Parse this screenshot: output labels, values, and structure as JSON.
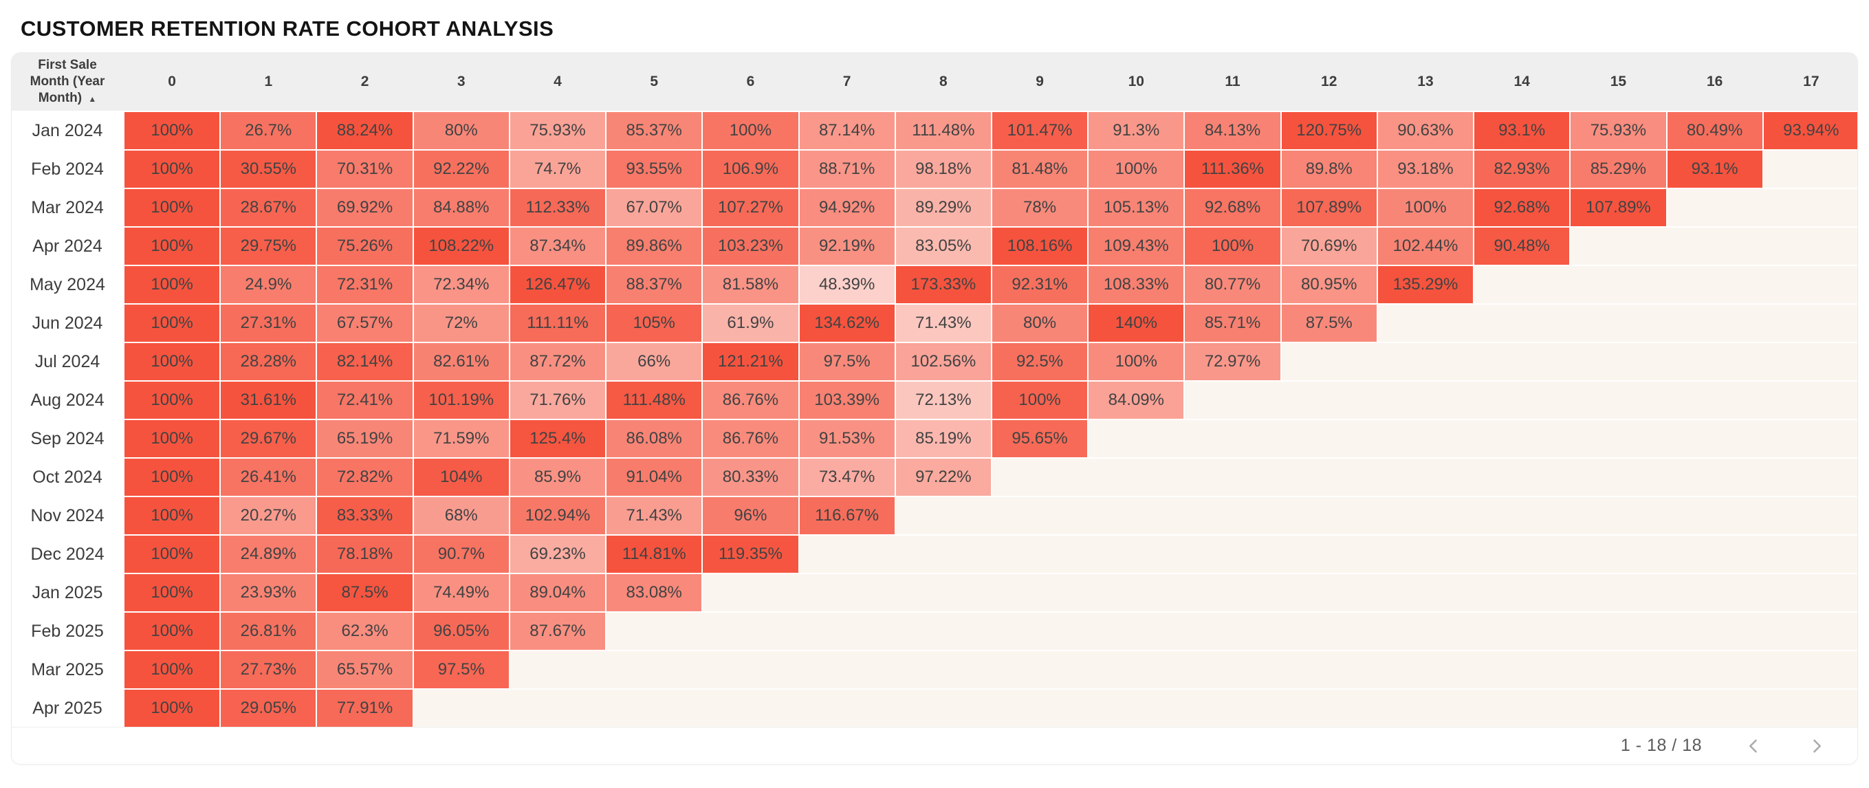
{
  "title": "CUSTOMER RETENTION RATE COHORT ANALYSIS",
  "chart_data": {
    "type": "heatmap",
    "row_header_label": "First Sale Month (Year Month)",
    "sort_indicator": "▲",
    "value_suffix": "%",
    "columns": [
      "0",
      "1",
      "2",
      "3",
      "4",
      "5",
      "6",
      "7",
      "8",
      "9",
      "10",
      "11",
      "12",
      "13",
      "14",
      "15",
      "16",
      "17"
    ],
    "rows": [
      {
        "label": "Jan 2024",
        "values": [
          100,
          26.7,
          88.24,
          80,
          75.93,
          85.37,
          100,
          87.14,
          111.48,
          101.47,
          91.3,
          84.13,
          120.75,
          90.63,
          93.1,
          75.93,
          80.49,
          93.94
        ]
      },
      {
        "label": "Feb 2024",
        "values": [
          100,
          30.55,
          70.31,
          92.22,
          74.7,
          93.55,
          106.9,
          88.71,
          98.18,
          81.48,
          100,
          111.36,
          89.8,
          93.18,
          82.93,
          85.29,
          93.1
        ]
      },
      {
        "label": "Mar 2024",
        "values": [
          100,
          28.67,
          69.92,
          84.88,
          112.33,
          67.07,
          107.27,
          94.92,
          89.29,
          78,
          105.13,
          92.68,
          107.89,
          100,
          92.68,
          107.89
        ]
      },
      {
        "label": "Apr 2024",
        "values": [
          100,
          29.75,
          75.26,
          108.22,
          87.34,
          89.86,
          103.23,
          92.19,
          83.05,
          108.16,
          109.43,
          100,
          70.69,
          102.44,
          90.48
        ]
      },
      {
        "label": "May 2024",
        "values": [
          100,
          24.9,
          72.31,
          72.34,
          126.47,
          88.37,
          81.58,
          48.39,
          173.33,
          92.31,
          108.33,
          80.77,
          80.95,
          135.29
        ]
      },
      {
        "label": "Jun 2024",
        "values": [
          100,
          27.31,
          67.57,
          72,
          111.11,
          105,
          61.9,
          134.62,
          71.43,
          80,
          140,
          85.71,
          87.5
        ]
      },
      {
        "label": "Jul 2024",
        "values": [
          100,
          28.28,
          82.14,
          82.61,
          87.72,
          66,
          121.21,
          97.5,
          102.56,
          92.5,
          100,
          72.97
        ]
      },
      {
        "label": "Aug 2024",
        "values": [
          100,
          31.61,
          72.41,
          101.19,
          71.76,
          111.48,
          86.76,
          103.39,
          72.13,
          100,
          84.09
        ]
      },
      {
        "label": "Sep 2024",
        "values": [
          100,
          29.67,
          65.19,
          71.59,
          125.4,
          86.08,
          86.76,
          91.53,
          85.19,
          95.65
        ]
      },
      {
        "label": "Oct 2024",
        "values": [
          100,
          26.41,
          72.82,
          104,
          85.9,
          91.04,
          80.33,
          73.47,
          97.22
        ]
      },
      {
        "label": "Nov 2024",
        "values": [
          100,
          20.27,
          83.33,
          68,
          102.94,
          71.43,
          96,
          116.67
        ]
      },
      {
        "label": "Dec 2024",
        "values": [
          100,
          24.89,
          78.18,
          90.7,
          69.23,
          114.81,
          119.35
        ]
      },
      {
        "label": "Jan 2025",
        "values": [
          100,
          23.93,
          87.5,
          74.49,
          89.04,
          83.08
        ]
      },
      {
        "label": "Feb 2025",
        "values": [
          100,
          26.81,
          62.3,
          96.05,
          87.67
        ]
      },
      {
        "label": "Mar 2025",
        "values": [
          100,
          27.73,
          65.57,
          97.5
        ]
      },
      {
        "label": "Apr 2025",
        "values": [
          100,
          29.05,
          77.91
        ]
      }
    ],
    "color_scale": {
      "mode": "per-column: value / column max",
      "min_color": "#fcd7d1",
      "max_color": "#f6533e",
      "ratio_floor": 0.33
    },
    "layout": {
      "header_bg": "#f0efef",
      "empty_cell_bg": "#fbf5f0",
      "grid_gap_color": "#ffffff"
    }
  },
  "footer": {
    "range_label": "1 - 18 / 18",
    "prev_icon": "chevron-left",
    "next_icon": "chevron-right",
    "icon_color": "#ababab"
  }
}
